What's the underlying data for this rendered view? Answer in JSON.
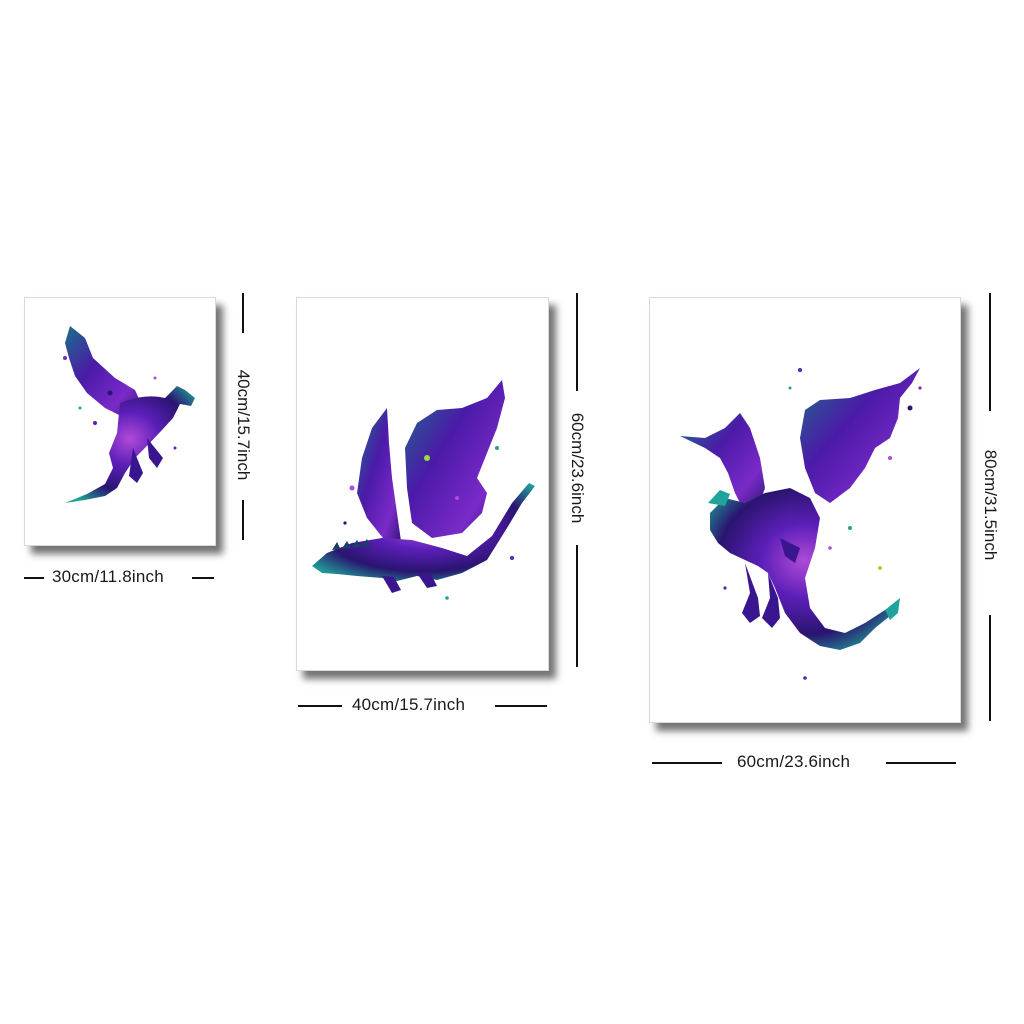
{
  "posters": [
    {
      "name": "small-poster",
      "width_label": "30cm/11.8inch",
      "height_label": "40cm/15.7inch",
      "artwork": "purple galaxy dragon silhouette"
    },
    {
      "name": "medium-poster",
      "width_label": "40cm/15.7inch",
      "height_label": "60cm/23.6inch",
      "artwork": "purple galaxy dragon silhouette"
    },
    {
      "name": "large-poster",
      "width_label": "60cm/23.6inch",
      "height_label": "80cm/31.5inch",
      "artwork": "purple galaxy dragon silhouette"
    }
  ],
  "colors": {
    "dragon_primary": "#5b1fb8",
    "dragon_secondary": "#2a1470",
    "dragon_accent": "#1fa39a",
    "dragon_highlight": "#b04ad8",
    "shadow": "#555555"
  }
}
